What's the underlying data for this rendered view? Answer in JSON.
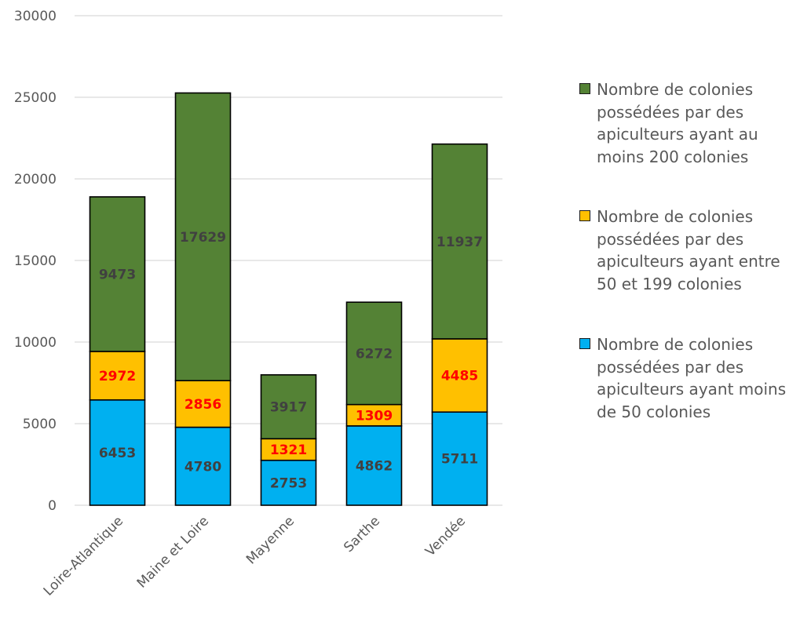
{
  "chart_data": {
    "type": "bar",
    "stacked": true,
    "categories": [
      "Loire-Atlantique",
      "Maine et Loire",
      "Mayenne",
      "Sarthe",
      "Vendée"
    ],
    "series": [
      {
        "name": "Nombre de colonies possédées par des apiculteurs ayant moins de 50 colonies",
        "color": "#00b0f0",
        "label_color": "#404040",
        "values": [
          6453,
          4780,
          2753,
          4862,
          5711
        ]
      },
      {
        "name": "Nombre de colonies possédées par des apiculteurs ayant entre 50 et 199 colonies",
        "color": "#ffc000",
        "label_color": "#ff0000",
        "values": [
          2972,
          2856,
          1321,
          1309,
          4485
        ]
      },
      {
        "name": "Nombre de colonies possédées par des apiculteurs ayant au moins 200 colonies",
        "color": "#548235",
        "label_color": "#404040",
        "values": [
          9473,
          17629,
          3917,
          6272,
          11937
        ]
      }
    ],
    "yticks": [
      "0",
      "5000",
      "10000",
      "15000",
      "20000",
      "25000",
      "30000"
    ],
    "ylim": [
      0,
      30000
    ],
    "grid": true,
    "legend_position": "right",
    "legend_order": [
      2,
      1,
      0
    ],
    "title": "",
    "xlabel": "",
    "ylabel": ""
  }
}
